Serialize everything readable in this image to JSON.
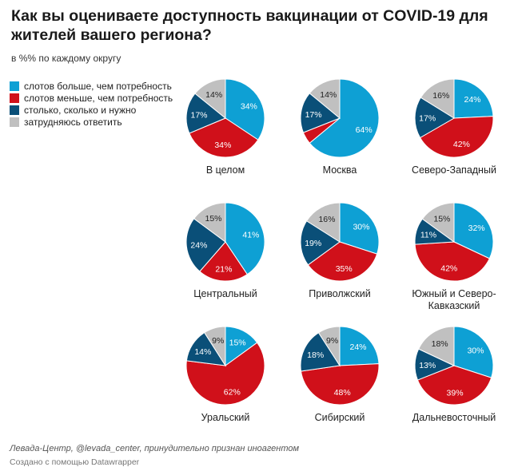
{
  "title": "Как вы оцениваете доступность вакцинации от COVID-19 для жителей вашего региона?",
  "subtitle": "в %% по каждому округу",
  "legend": [
    {
      "label": "слотов больше, чем потребность",
      "color": "#0ea0d4"
    },
    {
      "label": "слотов меньше, чем потребность",
      "color": "#d0101a"
    },
    {
      "label": "столько, сколько и нужно",
      "color": "#0a4f78"
    },
    {
      "label": "затрудняюсь ответить",
      "color": "#c0c0c0"
    }
  ],
  "chart_data": {
    "type": "pie",
    "series_names": [
      "слотов больше, чем потребность",
      "слотов меньше, чем потребность",
      "столько, сколько и нужно",
      "затрудняюсь ответить"
    ],
    "colors": [
      "#0ea0d4",
      "#d0101a",
      "#0a4f78",
      "#c0c0c0"
    ],
    "pies": [
      {
        "name": "В целом",
        "values": [
          34,
          34,
          17,
          14
        ]
      },
      {
        "name": "Москва",
        "values": [
          64,
          5,
          17,
          14
        ]
      },
      {
        "name": "Северо-Западный",
        "values": [
          24,
          42,
          17,
          16
        ]
      },
      {
        "name": "Центральный",
        "values": [
          41,
          21,
          24,
          15
        ]
      },
      {
        "name": "Приволжский",
        "values": [
          30,
          35,
          19,
          16
        ]
      },
      {
        "name": "Южный и Северо-Кавказский",
        "values": [
          32,
          42,
          11,
          15
        ]
      },
      {
        "name": "Уральский",
        "values": [
          15,
          62,
          14,
          9
        ]
      },
      {
        "name": "Сибирский",
        "values": [
          24,
          48,
          18,
          9
        ]
      },
      {
        "name": "Дальневосточный",
        "values": [
          30,
          39,
          13,
          18
        ]
      }
    ]
  },
  "source": "Левада-Центр, @levada_center, принудительно признан иноагентом",
  "credit": "Создано с помощью Datawrapper"
}
